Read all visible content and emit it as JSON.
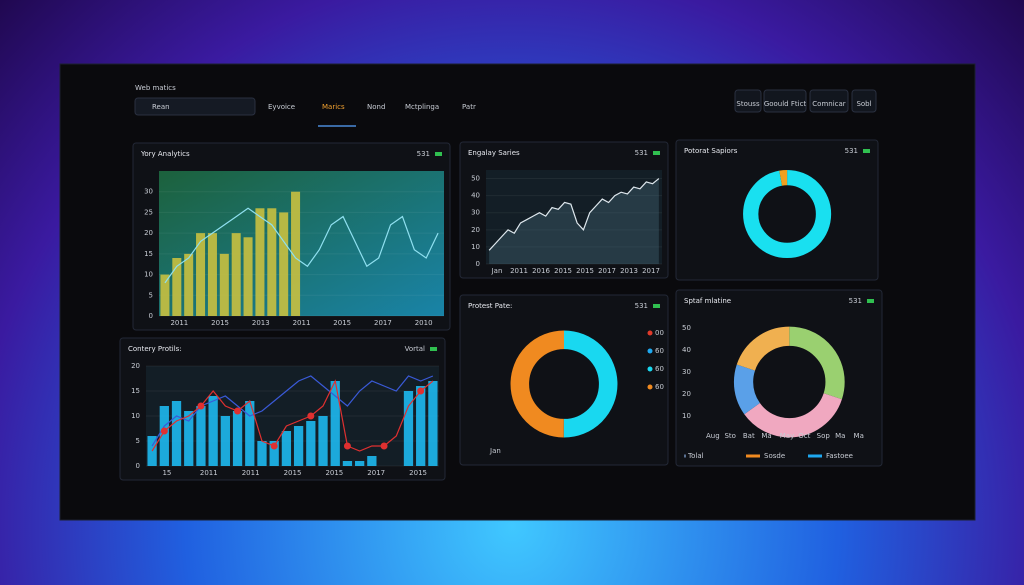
{
  "header": {
    "title": "Web matics",
    "search": "Rean",
    "nav": [
      "Eyvoice",
      "Marics",
      "Nond",
      "Mctplinga",
      "Patr"
    ],
    "active_nav": 1,
    "buttons": [
      "Stouss",
      "Goould Ftict",
      "Comnicar",
      "Sobl"
    ]
  },
  "chart_data": [
    {
      "type": "bar",
      "title": "Yory Analytics",
      "badge": "531",
      "ylim": [
        0,
        35
      ],
      "yticks": [
        0,
        5,
        10,
        15,
        20,
        25,
        30
      ],
      "xlabels": [
        "2011",
        "2015",
        "2013",
        "2011",
        "2015",
        "2017",
        "2010"
      ],
      "series": [
        {
          "type": "bar",
          "color": "#c9c040",
          "values": [
            10,
            14,
            15,
            20,
            20,
            15,
            20,
            19,
            26,
            26,
            25,
            30,
            null,
            null,
            null,
            null,
            null,
            null,
            null,
            null,
            null,
            null,
            null,
            null
          ]
        },
        {
          "type": "line",
          "color": "#8fe0f0",
          "values": [
            8,
            12,
            14,
            18,
            20,
            22,
            24,
            26,
            24,
            22,
            18,
            14,
            12,
            16,
            22,
            24,
            18,
            12,
            14,
            22,
            24,
            16,
            14,
            20
          ]
        }
      ]
    },
    {
      "type": "line",
      "title": "Engalay Saries",
      "badge": "531",
      "ylim": [
        0,
        55
      ],
      "yticks": [
        0,
        10,
        20,
        30,
        40,
        50
      ],
      "xlabels": [
        "Jan",
        "2011",
        "2016",
        "2015",
        "2015",
        "2017",
        "2013",
        "2017"
      ],
      "series": [
        {
          "type": "area",
          "color": "#dfe8ee",
          "values": [
            8,
            12,
            16,
            20,
            18,
            24,
            26,
            28,
            30,
            28,
            33,
            32,
            36,
            35,
            24,
            20,
            30,
            34,
            38,
            36,
            40,
            42,
            41,
            45,
            44,
            48,
            47,
            50
          ]
        }
      ]
    },
    {
      "type": "donut",
      "title": "Potorat Sapiors",
      "badge": "531",
      "values": [
        97,
        3
      ],
      "colors": [
        "#19e0f0",
        "#f0a020"
      ]
    },
    {
      "type": "bar",
      "title": "Contery Protils:",
      "badge": "Vortal",
      "ylim": [
        0,
        20
      ],
      "yticks": [
        0,
        5,
        10,
        15,
        20
      ],
      "xlabels": [
        "15",
        "2011",
        "2011",
        "2015",
        "2015",
        "2017",
        "2015"
      ],
      "series": [
        {
          "type": "bar",
          "color": "#1eb8f0",
          "values": [
            6,
            12,
            13,
            11,
            12,
            14,
            10,
            11,
            13,
            5,
            5,
            7,
            8,
            9,
            10,
            17,
            1,
            1,
            2,
            null,
            null,
            15,
            16,
            17
          ]
        },
        {
          "type": "line",
          "color": "#3a5ad8",
          "values": [
            4,
            8,
            10,
            9,
            12,
            13,
            14,
            12,
            10,
            11,
            13,
            15,
            17,
            18,
            16,
            14,
            12,
            15,
            17,
            16,
            15,
            18,
            17,
            18
          ]
        },
        {
          "type": "dotline",
          "color": "#e03030",
          "values": [
            3,
            7,
            9,
            10,
            12,
            15,
            12,
            11,
            13,
            5,
            4,
            8,
            9,
            10,
            12,
            17,
            4,
            3,
            4,
            4,
            6,
            12,
            15,
            17
          ]
        }
      ]
    },
    {
      "type": "donut",
      "title": "Protest Pate:",
      "badge": "531",
      "values": [
        50,
        50
      ],
      "colors": [
        "#19d8f0",
        "#f08a20"
      ],
      "legend": [
        "00",
        "60",
        "60",
        "60"
      ],
      "legend_colors": [
        "#e03a2a",
        "#1ea8f0",
        "#19d8f0",
        "#f08a20"
      ],
      "xlabels": [
        "Jan"
      ]
    },
    {
      "type": "donut",
      "title": "Sptaf mlatine",
      "badge": "531",
      "values": [
        30,
        35,
        15,
        20
      ],
      "colors": [
        "#9ad070",
        "#f0a8c0",
        "#5aa0e8",
        "#f0b050"
      ],
      "ylabels": [
        "50",
        "40",
        "30",
        "20",
        "10"
      ],
      "xlabels": [
        "Aug",
        "Sto",
        "Bat",
        "Ma",
        "May",
        "Oct",
        "Sop",
        "Ma",
        "Ma"
      ],
      "legend": [
        "Tolal",
        "Sosde",
        "Fastoee"
      ],
      "legend_colors": [
        "#5a7090",
        "#f08a20",
        "#1ea8f0"
      ]
    }
  ]
}
